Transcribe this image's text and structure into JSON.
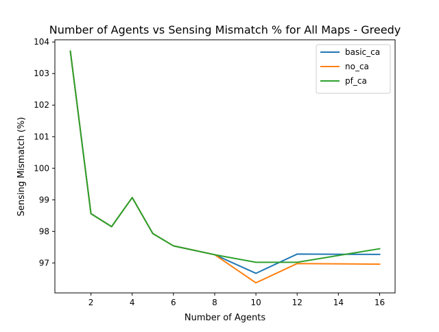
{
  "chart_data": {
    "type": "line",
    "title": "Number of Agents vs Sensing Mismatch % for All Maps - Greedy",
    "xlabel": "Number of Agents",
    "ylabel": "Sensing Mismatch (%)",
    "x": [
      1,
      2,
      3,
      4,
      5,
      6,
      8,
      10,
      12,
      16
    ],
    "xlim": [
      0.25,
      16.75
    ],
    "ylim": [
      96.05,
      104.07
    ],
    "xticks": [
      2,
      4,
      6,
      8,
      10,
      12,
      14,
      16
    ],
    "yticks": [
      97,
      98,
      99,
      100,
      101,
      102,
      103,
      104
    ],
    "grid": false,
    "legend_position": "top-right",
    "series": [
      {
        "name": "basic_ca",
        "color": "#1f77b4",
        "values": [
          103.71,
          98.56,
          98.15,
          99.07,
          97.93,
          97.54,
          97.26,
          96.67,
          97.28,
          97.27
        ]
      },
      {
        "name": "no_ca",
        "color": "#ff7f0e",
        "values": [
          103.71,
          98.56,
          98.15,
          99.07,
          97.93,
          97.54,
          97.26,
          96.37,
          96.98,
          96.96
        ]
      },
      {
        "name": "pf_ca",
        "color": "#2ca02c",
        "values": [
          103.71,
          98.56,
          98.15,
          99.07,
          97.93,
          97.54,
          97.26,
          97.02,
          97.02,
          97.45
        ]
      }
    ]
  }
}
